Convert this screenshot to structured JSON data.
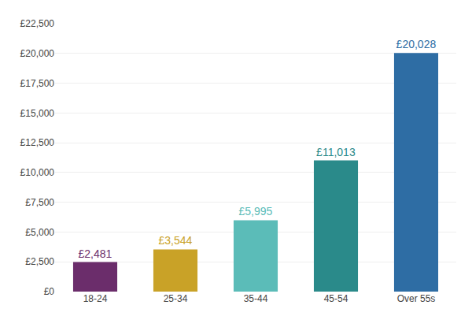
{
  "chart_data": {
    "type": "bar",
    "categories": [
      "18-24",
      "25-34",
      "35-44",
      "45-54",
      "Over 55s"
    ],
    "values": [
      2481,
      3544,
      5995,
      11013,
      20028
    ],
    "value_labels": [
      "£2,481",
      "£3,544",
      "£5,995",
      "£11,013",
      "£20,028"
    ],
    "data_labels": true,
    "colors": [
      "#6b2d6b",
      "#c9a227",
      "#5bbcb8",
      "#2a8a8a",
      "#2e6da4"
    ],
    "ylim": [
      0,
      22500
    ],
    "yticks": [
      {
        "value": 0,
        "label": "£0"
      },
      {
        "value": 2500,
        "label": "£2,500"
      },
      {
        "value": 5000,
        "label": "£5,000"
      },
      {
        "value": 7500,
        "label": "£7,500"
      },
      {
        "value": 10000,
        "label": "£10,000"
      },
      {
        "value": 12500,
        "label": "£12,500"
      },
      {
        "value": 15000,
        "label": "£15,000"
      },
      {
        "value": 17500,
        "label": "£17,500"
      },
      {
        "value": 20000,
        "label": "£20,000"
      },
      {
        "value": 22500,
        "label": "£22,500"
      }
    ],
    "grid": true
  }
}
